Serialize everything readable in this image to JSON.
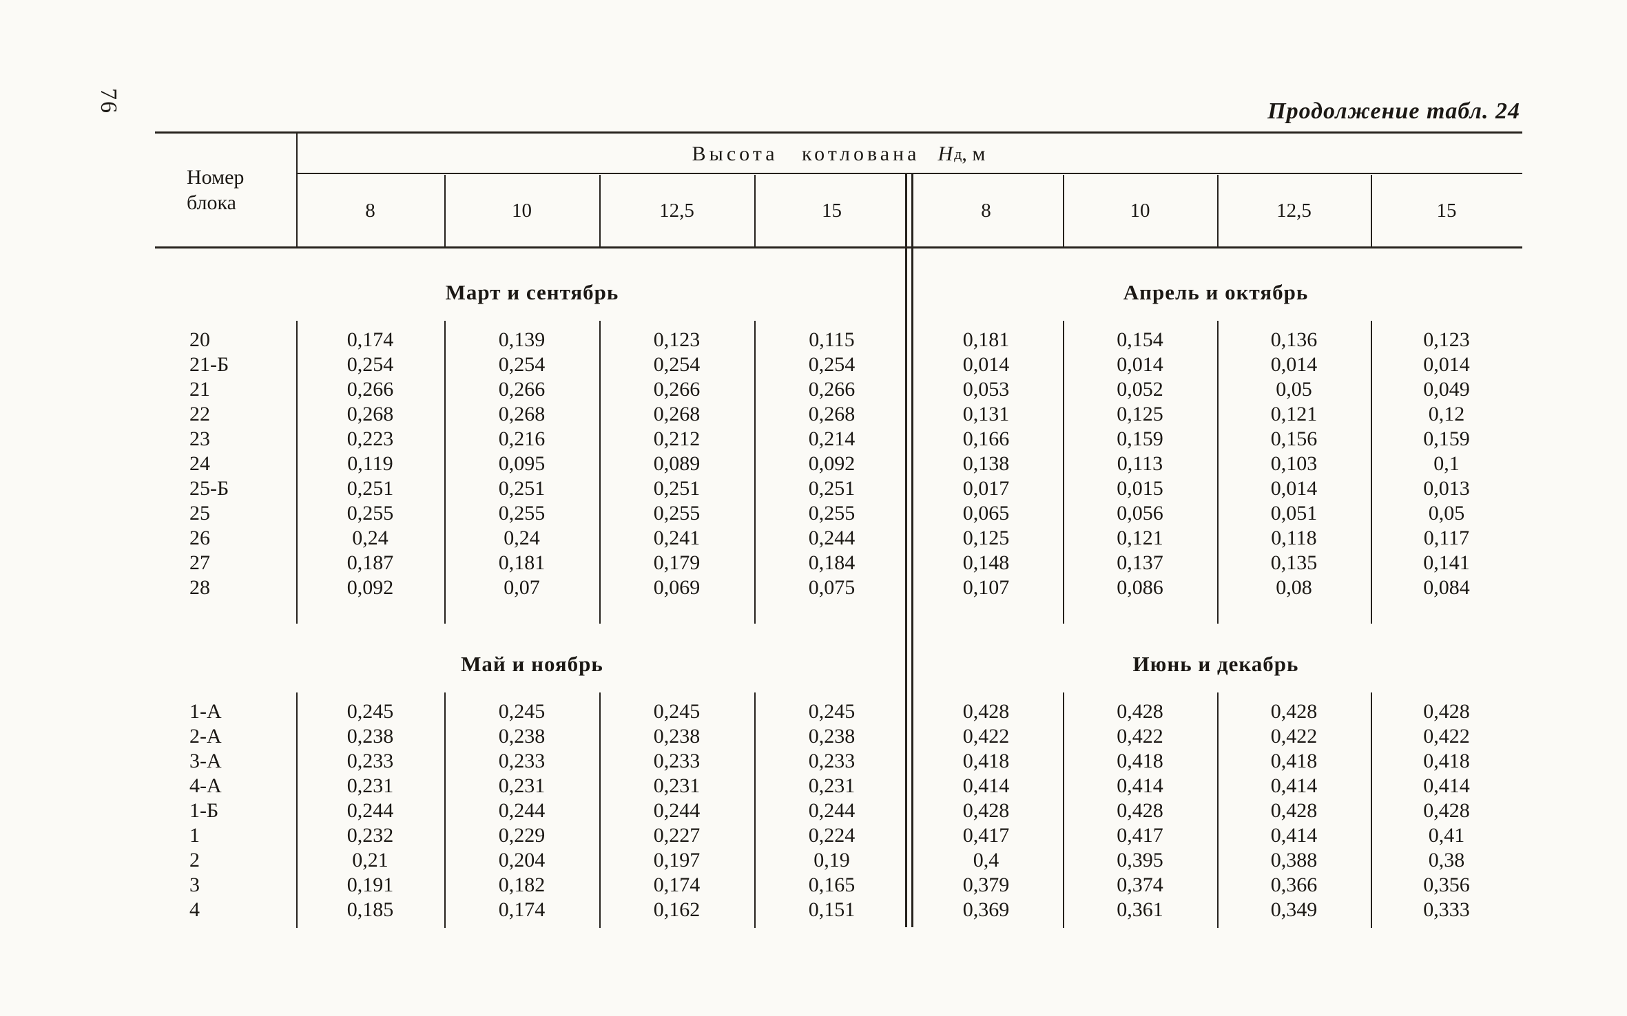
{
  "page": {
    "number": "76",
    "continuation_label": "Продолжение табл. 24"
  },
  "table": {
    "header": {
      "row_label_line1": "Номер",
      "row_label_line2": "блока",
      "span_title": "Высота котлована",
      "span_var": "Н",
      "span_var_sub": "д",
      "span_unit": ", м",
      "columns": [
        "8",
        "10",
        "12,5",
        "15",
        "8",
        "10",
        "12,5",
        "15"
      ]
    },
    "sections": [
      {
        "left_title": "Март и сентябрь",
        "right_title": "Апрель и октябрь",
        "rows": [
          {
            "label": "20",
            "values": [
              "0,174",
              "0,139",
              "0,123",
              "0,115",
              "0,181",
              "0,154",
              "0,136",
              "0,123"
            ]
          },
          {
            "label": "21-Б",
            "values": [
              "0,254",
              "0,254",
              "0,254",
              "0,254",
              "0,014",
              "0,014",
              "0,014",
              "0,014"
            ]
          },
          {
            "label": "21",
            "values": [
              "0,266",
              "0,266",
              "0,266",
              "0,266",
              "0,053",
              "0,052",
              "0,05",
              "0,049"
            ]
          },
          {
            "label": "22",
            "values": [
              "0,268",
              "0,268",
              "0,268",
              "0,268",
              "0,131",
              "0,125",
              "0,121",
              "0,12"
            ]
          },
          {
            "label": "23",
            "values": [
              "0,223",
              "0,216",
              "0,212",
              "0,214",
              "0,166",
              "0,159",
              "0,156",
              "0,159"
            ]
          },
          {
            "label": "24",
            "values": [
              "0,119",
              "0,095",
              "0,089",
              "0,092",
              "0,138",
              "0,113",
              "0,103",
              "0,1"
            ]
          },
          {
            "label": "25-Б",
            "values": [
              "0,251",
              "0,251",
              "0,251",
              "0,251",
              "0,017",
              "0,015",
              "0,014",
              "0,013"
            ]
          },
          {
            "label": "25",
            "values": [
              "0,255",
              "0,255",
              "0,255",
              "0,255",
              "0,065",
              "0,056",
              "0,051",
              "0,05"
            ]
          },
          {
            "label": "26",
            "values": [
              "0,24",
              "0,24",
              "0,241",
              "0,244",
              "0,125",
              "0,121",
              "0,118",
              "0,117"
            ]
          },
          {
            "label": "27",
            "values": [
              "0,187",
              "0,181",
              "0,179",
              "0,184",
              "0,148",
              "0,137",
              "0,135",
              "0,141"
            ]
          },
          {
            "label": "28",
            "values": [
              "0,092",
              "0,07",
              "0,069",
              "0,075",
              "0,107",
              "0,086",
              "0,08",
              "0,084"
            ]
          }
        ]
      },
      {
        "left_title": "Май и ноябрь",
        "right_title": "Июнь и декабрь",
        "rows": [
          {
            "label": "1-А",
            "values": [
              "0,245",
              "0,245",
              "0,245",
              "0,245",
              "0,428",
              "0,428",
              "0,428",
              "0,428"
            ]
          },
          {
            "label": "2-А",
            "values": [
              "0,238",
              "0,238",
              "0,238",
              "0,238",
              "0,422",
              "0,422",
              "0,422",
              "0,422"
            ]
          },
          {
            "label": "3-А",
            "values": [
              "0,233",
              "0,233",
              "0,233",
              "0,233",
              "0,418",
              "0,418",
              "0,418",
              "0,418"
            ]
          },
          {
            "label": "4-А",
            "values": [
              "0,231",
              "0,231",
              "0,231",
              "0,231",
              "0,414",
              "0,414",
              "0,414",
              "0,414"
            ]
          },
          {
            "label": "1-Б",
            "values": [
              "0,244",
              "0,244",
              "0,244",
              "0,244",
              "0,428",
              "0,428",
              "0,428",
              "0,428"
            ]
          },
          {
            "label": "1",
            "values": [
              "0,232",
              "0,229",
              "0,227",
              "0,224",
              "0,417",
              "0,417",
              "0,414",
              "0,41"
            ]
          },
          {
            "label": "2",
            "values": [
              "0,21",
              "0,204",
              "0,197",
              "0,19",
              "0,4",
              "0,395",
              "0,388",
              "0,38"
            ]
          },
          {
            "label": "3",
            "values": [
              "0,191",
              "0,182",
              "0,174",
              "0,165",
              "0,379",
              "0,374",
              "0,366",
              "0,356"
            ]
          },
          {
            "label": "4",
            "values": [
              "0,185",
              "0,174",
              "0,162",
              "0,151",
              "0,369",
              "0,361",
              "0,349",
              "0,333"
            ]
          }
        ]
      }
    ]
  }
}
